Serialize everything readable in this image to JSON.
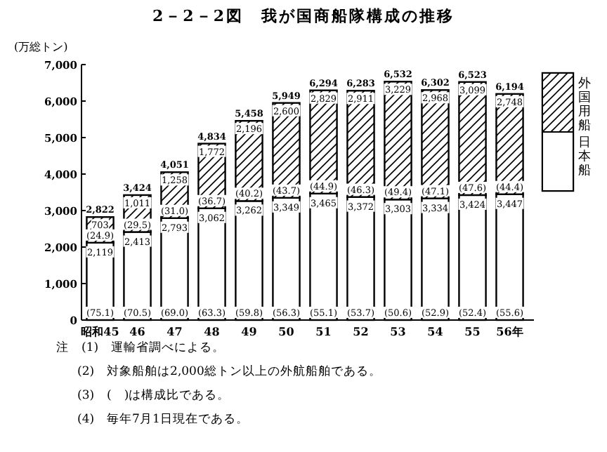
{
  "chart_data": {
    "type": "bar",
    "stacked": true,
    "title": "2－2－2図　我が国商船隊構成の推移",
    "ylabel": "(万総トン)",
    "legend": "right",
    "categories": [
      "昭和45",
      "46",
      "47",
      "48",
      "49",
      "50",
      "51",
      "52",
      "53",
      "54",
      "55",
      "56年"
    ],
    "ylim": [
      0,
      7000
    ],
    "yticks": [
      0,
      {
        "value": 1000,
        "label": "1,000"
      },
      {
        "value": 2000,
        "label": "2,000"
      },
      {
        "value": 3000,
        "label": "3,000"
      },
      {
        "value": 4000,
        "label": "4,000"
      },
      {
        "value": 5000,
        "label": "5,000"
      },
      {
        "value": 6000,
        "label": "6,000"
      },
      {
        "value": 7000,
        "label": "7,000"
      }
    ],
    "series": [
      {
        "name": "日本船",
        "color": "#ffffff",
        "values": [
          2119,
          2413,
          2793,
          3062,
          3262,
          3349,
          3465,
          3372,
          3303,
          3334,
          3424,
          3447
        ],
        "value_labels": [
          "2,119",
          "2,413",
          "2,793",
          "3,062",
          "3,262",
          "3,349",
          "3,465",
          "3,372",
          "3,303",
          "3,334",
          "3,424",
          "3,447"
        ]
      },
      {
        "name": "外国用船",
        "color": "#000000",
        "values": [
          703,
          1011,
          1258,
          1772,
          2196,
          2600,
          2829,
          2911,
          3229,
          2968,
          3099,
          2748
        ],
        "value_labels": [
          "703",
          "1,011",
          "1,258",
          "1,772",
          "2,196",
          "2,600",
          "2,829",
          "2,911",
          "3,229",
          "2,968",
          "3,099",
          "2,748"
        ]
      }
    ],
    "totals": [
      "2,822",
      "3,424",
      "4,051",
      "4,834",
      "5,458",
      "5,949",
      "6,294",
      "6,283",
      "6,532",
      "6,302",
      "6,523",
      "6,194"
    ],
    "annotations": [
      {
        "text": "(75.1)",
        "x": "昭和45",
        "y": 0
      },
      {
        "text": "(70.5)",
        "x": "46",
        "y": 0
      },
      {
        "text": "(69.0)",
        "x": "47",
        "y": 0
      },
      {
        "text": "(63.3)",
        "x": "48",
        "y": 0
      },
      {
        "text": "(59.8)",
        "x": "49",
        "y": 0
      },
      {
        "text": "(56.3)",
        "x": "50",
        "y": 0
      },
      {
        "text": "(55.1)",
        "x": "51",
        "y": 0
      },
      {
        "text": "(53.7)",
        "x": "52",
        "y": 0
      },
      {
        "text": "(50.6)",
        "x": "53",
        "y": 0
      },
      {
        "text": "(52.9)",
        "x": "54",
        "y": 0
      },
      {
        "text": "(52.4)",
        "x": "55",
        "y": 0
      },
      {
        "text": "(55.6)",
        "x": "56年",
        "y": 0
      },
      {
        "text": "(24.9)",
        "x": "昭和45",
        "y": 2119
      },
      {
        "text": "(29.5)",
        "x": "46",
        "y": 2413
      },
      {
        "text": "(31.0)",
        "x": "47",
        "y": 2793
      },
      {
        "text": "(36.7)",
        "x": "48",
        "y": 3062
      },
      {
        "text": "(40.2)",
        "x": "49",
        "y": 3262
      },
      {
        "text": "(43.7)",
        "x": "50",
        "y": 3349
      },
      {
        "text": "(44.9)",
        "x": "51",
        "y": 3465
      },
      {
        "text": "(46.3)",
        "x": "52",
        "y": 3372
      },
      {
        "text": "(49.4)",
        "x": "53",
        "y": 3303
      },
      {
        "text": "(47.1)",
        "x": "54",
        "y": 3334
      },
      {
        "text": "(47.6)",
        "x": "55",
        "y": 3424
      },
      {
        "text": "(44.4)",
        "x": "56年",
        "y": 3447
      },
      "注　(1)　運輸省調べによる。",
      "(2)　対象船舶は2,000総トン以上の外航船舶である。",
      "(3)　(　)は構成比である。",
      "(4)　毎年7月1日現在である。"
    ]
  }
}
